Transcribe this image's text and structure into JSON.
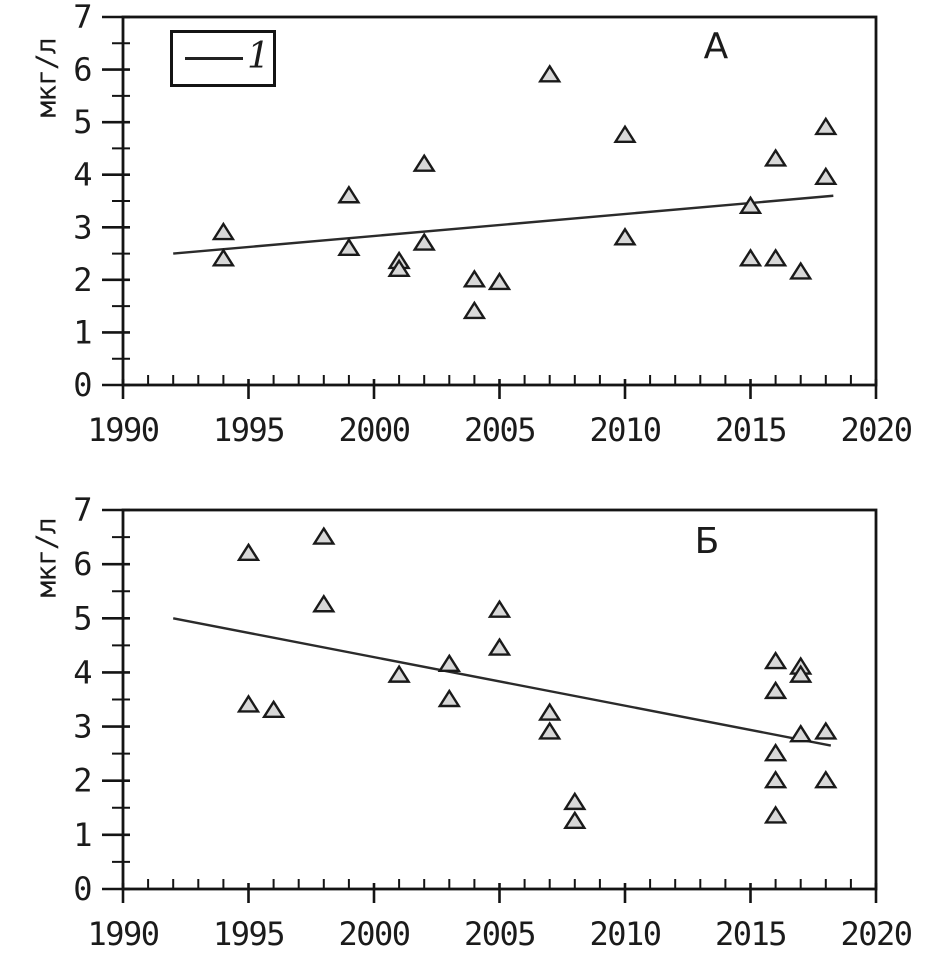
{
  "figure": {
    "background": "#ffffff",
    "panel_labels": [
      "А",
      "Б"
    ]
  },
  "colors": {
    "axis": "#141414",
    "text": "#1b1b1b",
    "trend_line": "#2b2b2b",
    "marker_fill": "#d8d8d8",
    "marker_stroke": "#1a1a1a",
    "background": "#ffffff"
  },
  "chart_data": [
    {
      "type": "scatter",
      "panel_label": "А",
      "ylabel": "мкг/л",
      "xlabel": "",
      "xlim": [
        1990,
        2020
      ],
      "ylim": [
        0,
        7
      ],
      "xtick_labels": [
        "1990",
        "1995",
        "2000",
        "2005",
        "2010",
        "2015",
        "2020"
      ],
      "ytick_labels": [
        "0",
        "1",
        "2",
        "3",
        "4",
        "5",
        "6",
        "7"
      ],
      "x_minor_step": 1,
      "y_minor_step": 0.5,
      "grid": "off",
      "marker": "triangle-up",
      "legend": {
        "position": "top-left",
        "items": [
          {
            "label": "1",
            "marker": "line"
          }
        ]
      },
      "points": [
        [
          1994,
          2.9
        ],
        [
          1994,
          2.4
        ],
        [
          1999,
          3.6
        ],
        [
          1999,
          2.6
        ],
        [
          2001,
          2.35
        ],
        [
          2001,
          2.2
        ],
        [
          2002,
          4.2
        ],
        [
          2002,
          2.7
        ],
        [
          2004,
          2.0
        ],
        [
          2004,
          1.4
        ],
        [
          2005,
          1.95
        ],
        [
          2007,
          5.9
        ],
        [
          2010,
          4.75
        ],
        [
          2010,
          2.8
        ],
        [
          2015,
          3.4
        ],
        [
          2015,
          2.4
        ],
        [
          2016,
          4.3
        ],
        [
          2016,
          2.4
        ],
        [
          2017,
          2.15
        ],
        [
          2018,
          4.9
        ],
        [
          2018,
          3.95
        ]
      ],
      "trend_line": {
        "series_label": "1",
        "x1": 1992.0,
        "y1": 2.5,
        "x2": 2018.3,
        "y2": 3.6
      }
    },
    {
      "type": "scatter",
      "panel_label": "Б",
      "ylabel": "мкг/л",
      "xlabel": "",
      "xlim": [
        1990,
        2020
      ],
      "ylim": [
        0,
        7
      ],
      "xtick_labels": [
        "1990",
        "1995",
        "2000",
        "2005",
        "2010",
        "2015",
        "2020"
      ],
      "ytick_labels": [
        "0",
        "1",
        "2",
        "3",
        "4",
        "5",
        "6",
        "7"
      ],
      "x_minor_step": 1,
      "y_minor_step": 0.5,
      "grid": "off",
      "marker": "triangle-up",
      "legend": null,
      "points": [
        [
          1995,
          6.2
        ],
        [
          1995,
          3.4
        ],
        [
          1996,
          3.3
        ],
        [
          1998,
          6.5
        ],
        [
          1998,
          5.25
        ],
        [
          2001,
          3.95
        ],
        [
          2003,
          4.15
        ],
        [
          2003,
          3.5
        ],
        [
          2005,
          5.15
        ],
        [
          2005,
          4.45
        ],
        [
          2007,
          3.25
        ],
        [
          2007,
          2.9
        ],
        [
          2008,
          1.6
        ],
        [
          2008,
          1.25
        ],
        [
          2016,
          4.2
        ],
        [
          2016,
          3.65
        ],
        [
          2016,
          2.5
        ],
        [
          2016,
          2.0
        ],
        [
          2016,
          1.35
        ],
        [
          2017,
          4.1
        ],
        [
          2017,
          3.95
        ],
        [
          2017,
          2.85
        ],
        [
          2018,
          2.9
        ],
        [
          2018,
          2.0
        ]
      ],
      "trend_line": {
        "series_label": "1",
        "x1": 1992.0,
        "y1": 5.0,
        "x2": 2018.2,
        "y2": 2.65
      }
    }
  ]
}
